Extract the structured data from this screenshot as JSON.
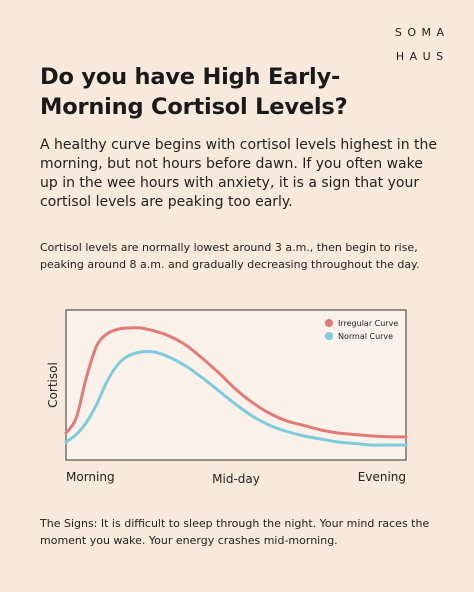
{
  "brand": {
    "text": "SOMA HAUS",
    "line1": "SOMA",
    "line2": "HAUS"
  },
  "title": "Do you have High Early-Morning Cortisol Levels?",
  "title_lines": [
    "Do you have High Early-",
    "Morning Cortisol Levels?"
  ],
  "intro": "A healthy curve begins with cortisol levels highest in the morning, but not hours before dawn. If you often wake up in the wee hours with anxiety, it is a sign that your cortisol levels are peaking too early.",
  "note": "Cortisol levels are normally lowest around 3 a.m., then begin to rise, peaking around 8 a.m. and gradually decreasing throughout the day.",
  "signs": "The Signs: It is difficult to sleep through the night. Your mind races the moment you wake. Your energy crashes mid-morning.",
  "colors": {
    "background": "#f7e9dc",
    "irregular": "#e07b76",
    "normal": "#7ecbdc",
    "axis": "#333333"
  },
  "chart_data": {
    "type": "line",
    "ylabel": "Cortisol",
    "x_tick_labels": [
      "Morning",
      "Mid-day",
      "Evening"
    ],
    "x": [
      0,
      0.03,
      0.06,
      0.09,
      0.12,
      0.15,
      0.18,
      0.22,
      0.26,
      0.3,
      0.35,
      0.4,
      0.45,
      0.5,
      0.55,
      0.6,
      0.65,
      0.7,
      0.75,
      0.8,
      0.85,
      0.9,
      0.95,
      1.0
    ],
    "xlim": [
      0,
      1
    ],
    "ylim": [
      0,
      1
    ],
    "grid": false,
    "legend_position": "top-right",
    "series": [
      {
        "name": "Irregular Curve",
        "color": "#e07b76",
        "values": [
          0.18,
          0.28,
          0.55,
          0.76,
          0.84,
          0.87,
          0.88,
          0.88,
          0.86,
          0.83,
          0.77,
          0.68,
          0.58,
          0.47,
          0.38,
          0.31,
          0.26,
          0.23,
          0.2,
          0.18,
          0.17,
          0.16,
          0.155,
          0.155
        ]
      },
      {
        "name": "Normal Curve",
        "color": "#7ecbdc",
        "values": [
          0.12,
          0.17,
          0.25,
          0.37,
          0.52,
          0.63,
          0.69,
          0.72,
          0.72,
          0.69,
          0.63,
          0.55,
          0.46,
          0.37,
          0.29,
          0.23,
          0.19,
          0.16,
          0.14,
          0.12,
          0.11,
          0.1,
          0.1,
          0.1
        ]
      }
    ]
  }
}
